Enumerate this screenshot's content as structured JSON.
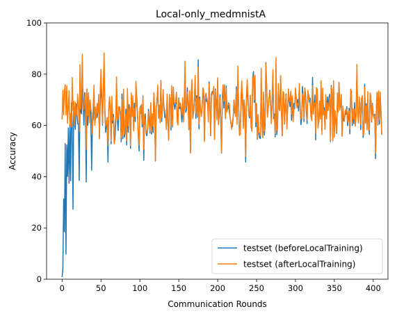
{
  "chart_data": {
    "type": "line",
    "title": "Local-only_medmnistA",
    "xlabel": "Communication Rounds",
    "ylabel": "Accuracy",
    "xlim": [
      -19.95,
      418.95
    ],
    "ylim": [
      0,
      100
    ],
    "xticks": [
      "0",
      "50",
      "100",
      "150",
      "200",
      "250",
      "300",
      "350",
      "400"
    ],
    "yticks": [
      "0",
      "20",
      "40",
      "60",
      "80",
      "100"
    ],
    "grid": false,
    "legend_position": "lower-right",
    "series": [
      {
        "name": "testset (beforeLocalTraining)",
        "color": "#1f77b4",
        "values": [
          0.8,
          4.1,
          31.3,
          18.5,
          52.9,
          9.8,
          52.4,
          40.1,
          59.0,
          37.4,
          60.3,
          38.4,
          68.8,
          60.5,
          27.3,
          69.3,
          60.7,
          58.5,
          68.4,
          65.4,
          60.6,
          60.7,
          38.5,
          69.1,
          65.3,
          64.5,
          76.3,
          72.9,
          60.1,
          72.8,
          64.7,
          37.9,
          74.2,
          60.1,
          71.3,
          63.9,
          69.6,
          62.0,
          42.5,
          61.2,
          62.3,
          73.9,
          60.4,
          63.4,
          64.0,
          63.1,
          65.6,
          69.1,
          55.3,
          67.6,
          75.2,
          70.3,
          60.1,
          74.1,
          84.1,
          65.1,
          57.3,
          60.4,
          60.0,
          45.6,
          65.8,
          70.9,
          67.2,
          52.8,
          67.5,
          60.9,
          64.3,
          53.1,
          54.9,
          61.6,
          76.4,
          62.2,
          58.0,
          67.0,
          67.2,
          63.7,
          53.6,
          72.3,
          54.8,
          71.8,
          55.4,
          56.9,
          66.4,
          52.4,
          71.6,
          57.3,
          68.2,
          65.8,
          51.0,
          70.9,
          65.2,
          67.8,
          58.5,
          68.7,
          61.5,
          75.9,
          70.9,
          63.7,
          55.6,
          50.0,
          65.5,
          67.5,
          66.2,
          59.4,
          71.6,
          46.4,
          63.8,
          64.5,
          57.0,
          56.0,
          58.7,
          66.3,
          62.9,
          57.0,
          68.2,
          56.6,
          62.6,
          57.2,
          72.6,
          64.8,
          46.1,
          66.4,
          70.3,
          73.8,
          64.1,
          65.6,
          62.7,
          77.6,
          61.5,
          66.4,
          71.1,
          67.5,
          63.0,
          63.8,
          60.2,
          71.4,
          60.8,
          55.3,
          69.5,
          70.7,
          58.2,
          73.9,
          59.4,
          74.9,
          68.3,
          66.3,
          68.7,
          72.4,
          62.4,
          63.1,
          70.7,
          66.5,
          68.0,
          65.4,
          61.3,
          67.9,
          61.8,
          66.3,
          81.0,
          65.1,
          66.2,
          74.7,
          69.0,
          58.5,
          72.1,
          49.3,
          69.8,
          75.6,
          62.8,
          65.0,
          70.1,
          76.5,
          62.7,
          71.6,
          63.2,
          85.6,
          58.6,
          71.1,
          66.0,
          63.5,
          67.9,
          72.0,
          72.2,
          54.2,
          71.6,
          69.4,
          70.2,
          68.4,
          63.8,
          77.0,
          68.3,
          56.0,
          72.1,
          73.2,
          72.9,
          72.0,
          54.9,
          74.2,
          69.3,
          63.7,
          77.7,
          61.8,
          63.4,
          72.0,
          60.9,
          49.2,
          70.2,
          74.4,
          66.8,
          75.8,
          62.6,
          75.3,
          65.6,
          66.5,
          68.8,
          65.3,
          63.1,
          60.9,
          59.8,
          59.5,
          63.6,
          69.7,
          64.8,
          65.5,
          75.1,
          62.4,
          80.4,
          66.4,
          57.9,
          56.8,
          67.7,
          74.4,
          71.4,
          59.6,
          69.9,
          65.4,
          45.7,
          68.8,
          75.3,
          70.1,
          64.3,
          62.9,
          71.7,
          59.2,
          58.5,
          78.1,
          81.0,
          69.0,
          79.2,
          59.5,
          68.3,
          54.5,
          64.2,
          56.5,
          55.1,
          54.9,
          79.0,
          60.0,
          55.2,
          71.8,
          56.2,
          60.1,
          84.5,
          75.3,
          63.4,
          67.2,
          70.4,
          73.7,
          68.0,
          61.3,
          68.1,
          79.9,
          62.6,
          64.5,
          55.5,
          83.3,
          56.4,
          59.4,
          74.3,
          68.9,
          68.3,
          79.4,
          65.0,
          55.9,
          71.2,
          72.8,
          60.5,
          67.8,
          72.3,
          60.1,
          66.3,
          71.4,
          69.8,
          67.3,
          72.9,
          62.0,
          70.9,
          63.1,
          68.6,
          66.6,
          73.0,
          70.8,
          67.4,
          70.2,
          65.6,
          73.8,
          68.1,
          60.3,
          62.4,
          75.2,
          70.5,
          61.5,
          74.6,
          72.3,
          65.2,
          60.7,
          73.2,
          71.8,
          69.1,
          70.6,
          64.1,
          63.0,
          78.7,
          65.4,
          67.8,
          71.9,
          54.3,
          72.3,
          73.8,
          59.6,
          61.3,
          68.8,
          62.8,
          75.1,
          57.9,
          72.1,
          66.9,
          66.9,
          58.5,
          69.8,
          65.0,
          71.1,
          65.9,
          70.8,
          72.1,
          53.7,
          75.6,
          72.5,
          54.0,
          76.3,
          57.7,
          65.4,
          62.1,
          56.9,
          70.3,
          67.8,
          76.8,
          67.6,
          67.2,
          69.8,
          55.8,
          65.1,
          61.8,
          62.9,
          64.5,
          64.3,
          67.3,
          59.9,
          62.4,
          66.7,
          56.7,
          72.3,
          73.5,
          59.9,
          63.6,
          60.7,
          68.9,
          60.0,
          65.2,
          79.8,
          66.1,
          61.9,
          67.8,
          68.9,
          58.4,
          70.4,
          71.5,
          55.3,
          57.5,
          76.1,
          61.6,
          68.5,
          58.9,
          70.4,
          60.9,
          56.5,
          71.9,
          69.5,
          61.3,
          68.6,
          64.1,
          63.1,
          64.4,
          47.0,
          66.5,
          72.9,
          60.1,
          73.0,
          60.5,
          71.8,
          65.8,
          56.3
        ]
      },
      {
        "name": "testset (afterLocalTraining)",
        "color": "#ff7f0e",
        "values": [
          62.3,
          73.7,
          64.1,
          73.6,
          75.9,
          64.0,
          75.5,
          60.8,
          67.3,
          73.6,
          60.1,
          64.6,
          59.4,
          78.7,
          65.9,
          69.4,
          59.9,
          69.0,
          64.3,
          63.9,
          72.2,
          67.2,
          57.7,
          83.7,
          66.4,
          73.0,
          87.8,
          65.8,
          66.5,
          70.9,
          72.6,
          50.6,
          74.2,
          63.8,
          72.8,
          61.0,
          70.0,
          66.3,
          64.7,
          56.5,
          67.9,
          75.7,
          60.0,
          67.2,
          62.9,
          68.6,
          64.8,
          72.1,
          54.7,
          73.4,
          81.9,
          72.4,
          60.4,
          74.9,
          88.3,
          66.9,
          59.6,
          61.4,
          63.1,
          51.9,
          66.6,
          71.2,
          65.6,
          54.0,
          71.4,
          62.1,
          63.2,
          52.8,
          59.6,
          63.8,
          79.0,
          62.0,
          62.5,
          67.3,
          66.7,
          65.3,
          55.3,
          70.1,
          56.0,
          74.2,
          56.5,
          58.9,
          64.3,
          54.0,
          74.5,
          59.8,
          65.7,
          67.0,
          52.2,
          72.7,
          63.5,
          71.6,
          57.8,
          66.6,
          63.6,
          77.2,
          67.7,
          65.4,
          55.4,
          52.2,
          66.9,
          64.6,
          68.2,
          60.5,
          71.6,
          50.7,
          64.1,
          61.8,
          56.9,
          57.5,
          58.6,
          65.3,
          60.4,
          57.8,
          68.9,
          57.4,
          64.6,
          59.6,
          72.7,
          67.2,
          46.3,
          67.1,
          69.2,
          75.8,
          62.7,
          68.0,
          61.0,
          77.5,
          63.1,
          66.6,
          73.9,
          65.7,
          66.1,
          63.9,
          58.4,
          72.2,
          61.7,
          54.1,
          72.1,
          69.5,
          59.4,
          75.5,
          59.9,
          74.8,
          68.9,
          68.9,
          69.0,
          73.0,
          61.4,
          60.1,
          70.4,
          67.3,
          68.8,
          66.5,
          64.1,
          70.8,
          61.3,
          69.0,
          85.1,
          66.3,
          67.7,
          73.0,
          67.2,
          58.3,
          73.5,
          49.3,
          72.3,
          77.9,
          62.6,
          66.5,
          69.6,
          79.5,
          64.8,
          70.7,
          63.6,
          82.8,
          60.6,
          70.3,
          65.9,
          63.4,
          66.9,
          74.7,
          73.5,
          53.7,
          71.4,
          72.6,
          70.9,
          69.3,
          61.3,
          76.1,
          67.4,
          56.2,
          71.2,
          72.6,
          72.3,
          75.3,
          54.5,
          73.6,
          67.9,
          62.1,
          78.6,
          60.2,
          64.0,
          70.6,
          62.8,
          49.4,
          72.0,
          75.9,
          69.5,
          75.7,
          62.7,
          74.5,
          65.2,
          67.9,
          68.2,
          68.5,
          63.3,
          60.9,
          58.6,
          61.4,
          63.8,
          70.0,
          66.5,
          63.4,
          73.9,
          60.4,
          83.2,
          66.4,
          56.1,
          56.5,
          70.8,
          77.4,
          68.9,
          58.8,
          69.7,
          67.0,
          47.9,
          71.4,
          77.9,
          71.4,
          63.7,
          63.8,
          71.7,
          59.6,
          57.7,
          79.4,
          78.3,
          70.0,
          79.6,
          61.2,
          68.6,
          54.7,
          64.1,
          57.3,
          57.0,
          56.1,
          82.3,
          60.6,
          55.2,
          73.0,
          57.9,
          62.7,
          84.1,
          75.7,
          63.2,
          66.9,
          70.3,
          73.3,
          69.2,
          60.6,
          70.8,
          81.8,
          64.6,
          62.8,
          56.9,
          86.5,
          58.0,
          60.3,
          76.4,
          66.3,
          65.7,
          79.4,
          65.8,
          56.0,
          73.3,
          72.3,
          60.7,
          67.5,
          71.8,
          58.6,
          67.2,
          74.3,
          70.6,
          69.3,
          73.4,
          64.4,
          71.5,
          61.4,
          66.2,
          67.9,
          74.7,
          70.7,
          66.8,
          68.6,
          68.0,
          76.4,
          66.2,
          62.4,
          63.5,
          72.5,
          71.5,
          62.6,
          74.7,
          70.0,
          67.4,
          62.0,
          73.7,
          70.3,
          71.1,
          68.1,
          63.1,
          61.8,
          75.5,
          64.4,
          68.6,
          68.8,
          56.8,
          74.7,
          74.2,
          58.9,
          62.6,
          69.5,
          62.5,
          77.5,
          56.4,
          74.6,
          64.2,
          65.8,
          58.5,
          72.1,
          62.5,
          68.9,
          66.2,
          68.4,
          71.0,
          54.1,
          75.1,
          74.0,
          54.1,
          77.5,
          55.4,
          65.8,
          60.6,
          57.3,
          72.7,
          65.1,
          76.8,
          66.1,
          69.0,
          72.1,
          55.9,
          67.6,
          63.9,
          61.6,
          65.8,
          66.2,
          66.1,
          61.3,
          65.2,
          65.6,
          58.6,
          74.2,
          72.6,
          60.9,
          66.5,
          62.5,
          66.4,
          59.7,
          63.4,
          83.8,
          64.4,
          60.9,
          71.1,
          67.6,
          60.3,
          70.4,
          71.6,
          56.3,
          56.5,
          74.9,
          60.8,
          67.5,
          58.3,
          73.2,
          58.0,
          58.3,
          72.7,
          71.5,
          61.7,
          68.1,
          64.7,
          62.7,
          63.7,
          49.2,
          66.6,
          73.0,
          60.4,
          73.5,
          62.2,
          73.0,
          63.7,
          56.4
        ]
      }
    ]
  }
}
